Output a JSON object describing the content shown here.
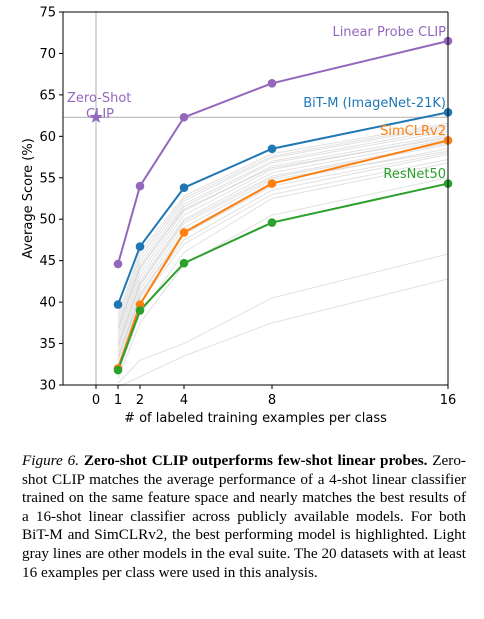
{
  "chart_data": {
    "type": "line",
    "xlabel": "# of labeled training examples per class",
    "ylabel": "Average Score (%)",
    "xlim": [
      -1.5,
      16
    ],
    "ylim": [
      30,
      75
    ],
    "xticks": [
      0,
      1,
      2,
      4,
      8,
      16
    ],
    "yticks": [
      30,
      35,
      40,
      45,
      50,
      55,
      60,
      65,
      70,
      75
    ],
    "x": [
      1,
      2,
      4,
      8,
      16
    ],
    "series": [
      {
        "name": "Linear Probe CLIP",
        "color": "#9467bd",
        "values": [
          44.6,
          54.0,
          62.3,
          66.4,
          71.5
        ]
      },
      {
        "name": "BiT-M (ImageNet-21K)",
        "color": "#1f77b4",
        "values": [
          39.7,
          46.7,
          53.8,
          58.5,
          62.9
        ]
      },
      {
        "name": "SimCLRv2",
        "color": "#ff7f0e",
        "values": [
          32.0,
          39.7,
          48.4,
          54.3,
          59.5
        ]
      },
      {
        "name": "ResNet50",
        "color": "#2ca02c",
        "values": [
          31.8,
          39.0,
          44.7,
          49.6,
          54.3
        ]
      }
    ],
    "zero_shot": {
      "label_line1": "Zero-Shot",
      "label_line2": "CLIP",
      "x": 0,
      "y": 62.3,
      "color": "#9467bd"
    },
    "gray_series": [
      [
        34.5,
        42.0,
        49.5,
        55.0,
        59.0
      ],
      [
        35.5,
        43.0,
        50.5,
        56.0,
        60.0
      ],
      [
        36.5,
        44.0,
        51.5,
        56.8,
        60.6
      ],
      [
        37.5,
        45.0,
        52.2,
        57.4,
        61.2
      ],
      [
        33.5,
        41.0,
        48.5,
        54.5,
        58.5
      ],
      [
        38.5,
        46.0,
        52.8,
        57.9,
        61.6
      ],
      [
        34.0,
        41.5,
        49.0,
        54.8,
        58.2
      ],
      [
        36.0,
        43.5,
        51.0,
        56.4,
        60.2
      ],
      [
        37.0,
        44.5,
        51.8,
        57.0,
        60.9
      ],
      [
        33.0,
        40.5,
        47.5,
        53.5,
        57.8
      ],
      [
        35.0,
        42.5,
        50.0,
        55.6,
        59.6
      ],
      [
        38.0,
        45.5,
        52.5,
        57.6,
        61.4
      ],
      [
        32.5,
        40.0,
        47.0,
        53.0,
        57.2
      ],
      [
        31.5,
        38.5,
        46.0,
        52.5,
        56.8
      ],
      [
        36.8,
        44.2,
        51.2,
        56.2,
        59.8
      ],
      [
        34.8,
        42.2,
        49.8,
        55.2,
        59.2
      ],
      [
        33.2,
        40.8,
        48.2,
        54.0,
        58.0
      ],
      [
        30.8,
        37.5,
        44.5,
        50.5,
        55.0
      ],
      [
        30.2,
        33.0,
        35.0,
        40.5,
        45.8
      ],
      [
        29.8,
        31.0,
        33.5,
        37.5,
        42.8
      ]
    ]
  },
  "caption": {
    "label": "Figure 6.",
    "title": "Zero-shot CLIP outperforms few-shot linear probes.",
    "body": "Zero-shot CLIP matches the average performance of a 4-shot linear classifier trained on the same feature space and nearly matches the best results of a 16-shot linear classifier across publicly available models. For both BiT-M and SimCLRv2, the best performing model is highlighted. Light gray lines are other models in the eval suite. The 20 datasets with at least 16 examples per class were used in this analysis."
  }
}
